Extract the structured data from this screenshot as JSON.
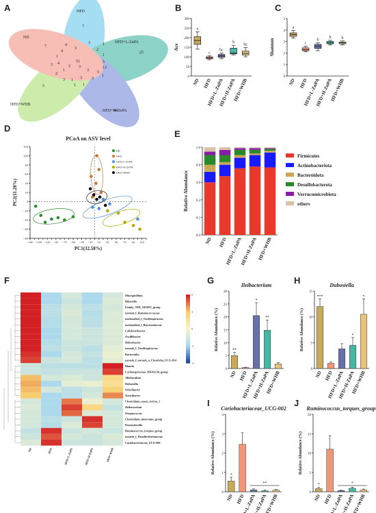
{
  "panels": {
    "A": "A",
    "B": "B",
    "C": "C",
    "D": "D",
    "E": "E",
    "F": "F",
    "G": "G",
    "H": "H",
    "I": "I",
    "J": "J"
  },
  "venn": {
    "sets": [
      {
        "name": "HFD",
        "color": "#5dc3e8"
      },
      {
        "name": "HFD+L-ZnPA",
        "color": "#2fae9a"
      },
      {
        "name": "HFD+H-ZnPA",
        "color": "#6b7fd6"
      },
      {
        "name": "HFD+WHB",
        "color": "#a6dc66"
      },
      {
        "name": "ND",
        "color": "#f28a7a"
      }
    ],
    "numbers": [
      "7",
      "25",
      "44",
      "3",
      "7",
      "51",
      "4",
      "3",
      "1",
      "1",
      "3",
      "4",
      "3",
      "2",
      "1",
      "5",
      "3",
      "1",
      "2",
      "1",
      "3",
      "12",
      "5",
      "1",
      "3",
      "1",
      "1",
      "3",
      "2",
      "4",
      "3"
    ]
  },
  "group_labels": [
    "ND",
    "HFD",
    "HFD+L-ZnPA",
    "HFD+H-ZnPA",
    "HFD+WHB"
  ],
  "box_colors": [
    "#c9a95c",
    "#f0977a",
    "#6872a8",
    "#46b6a5",
    "#e8c37e"
  ],
  "chart_data": [
    {
      "panel": "B",
      "type": "box",
      "ylabel": "Ace",
      "ylim": [
        0,
        300
      ],
      "yticks": [
        0,
        50,
        100,
        150,
        200,
        250,
        300
      ],
      "categories": [
        "ND",
        "HFD",
        "HFD+L-ZnPA",
        "HFD+H-ZnPA",
        "HFD+WHB"
      ],
      "boxes": [
        {
          "min": 140,
          "q1": 165,
          "median": 185,
          "q3": 205,
          "max": 230
        },
        {
          "min": 85,
          "q1": 90,
          "median": 95,
          "q3": 100,
          "max": 105
        },
        {
          "min": 90,
          "q1": 98,
          "median": 105,
          "q3": 112,
          "max": 120
        },
        {
          "min": 110,
          "q1": 115,
          "median": 120,
          "q3": 145,
          "max": 160
        },
        {
          "min": 100,
          "q1": 110,
          "median": 118,
          "q3": 130,
          "max": 148
        }
      ],
      "letters": [
        "a",
        "c",
        "bc",
        "b",
        "bc"
      ]
    },
    {
      "panel": "C",
      "type": "box",
      "ylabel": "Shannon",
      "ylim": [
        0,
        5
      ],
      "yticks": [
        0,
        1,
        2,
        3,
        4,
        5
      ],
      "categories": [
        "ND",
        "HFD",
        "HFD+L-ZnPA",
        "HFD+H-ZnPA",
        "HFD+WHB"
      ],
      "boxes": [
        {
          "min": 3.3,
          "q1": 3.45,
          "median": 3.6,
          "q3": 3.75,
          "max": 3.95
        },
        {
          "min": 2.1,
          "q1": 2.2,
          "median": 2.3,
          "q3": 2.45,
          "max": 2.6
        },
        {
          "min": 2.2,
          "q1": 2.4,
          "median": 2.6,
          "q3": 2.75,
          "max": 2.9
        },
        {
          "min": 2.7,
          "q1": 2.8,
          "median": 2.9,
          "q3": 3.0,
          "max": 3.1
        },
        {
          "min": 2.7,
          "q1": 2.8,
          "median": 2.9,
          "q3": 2.95,
          "max": 3.05
        }
      ],
      "letters": [
        "a",
        "c",
        "b",
        "b",
        "b"
      ]
    },
    {
      "panel": "D",
      "type": "scatter",
      "title": "PCoA on ASV level",
      "xlabel": "PC1(32.58%)",
      "ylabel": "PC2(11.28%)",
      "xlim": [
        -150,
        120
      ],
      "ylim": [
        -80,
        120
      ],
      "xticks": [
        -150,
        -140,
        -130,
        -120,
        -110,
        -100,
        -90,
        -80,
        -70,
        -60,
        -50,
        -40,
        -30,
        -20,
        -10,
        0,
        10,
        20,
        30,
        40,
        50,
        60,
        70,
        80,
        90,
        100,
        110,
        120
      ],
      "xtick_labels": [
        "−150",
        "−140",
        "−130",
        "−120",
        "−110",
        "−100",
        "−90",
        "−80",
        "−70",
        "−60",
        "−50",
        "−40",
        "−30",
        "−20",
        "−10",
        "0",
        "10",
        "20",
        "30",
        "40",
        "50",
        "60",
        "70",
        "80",
        "90",
        "100",
        "110",
        "120"
      ],
      "yticks": [
        -80,
        -60,
        -40,
        -20,
        0,
        20,
        40,
        60,
        80,
        100,
        120
      ],
      "yticks_labels": [
        "−80",
        "−60",
        "−40",
        "−20",
        "0",
        "20",
        "40",
        "60",
        "80",
        "100",
        "120"
      ],
      "series": [
        {
          "name": "ND",
          "color": "#2e8b2e",
          "points": [
            [
              -137,
              -10
            ],
            [
              -125,
              -30
            ],
            [
              -115,
              -45
            ],
            [
              -100,
              -38
            ],
            [
              -85,
              -35
            ],
            [
              -70,
              -40
            ],
            [
              -50,
              -33
            ]
          ]
        },
        {
          "name": "HFD",
          "color": "#c57a3a",
          "points": [
            [
              5,
              100
            ],
            [
              10,
              70
            ],
            [
              -8,
              55
            ],
            [
              3,
              40
            ],
            [
              15,
              20
            ],
            [
              -5,
              10
            ]
          ]
        },
        {
          "name": "HFD+L-ZnPA",
          "color": "#4a90e2",
          "points": [
            [
              20,
              5
            ],
            [
              35,
              -5
            ],
            [
              -5,
              -12
            ],
            [
              10,
              -15
            ],
            [
              100,
              -38
            ]
          ]
        },
        {
          "name": "HFD+H-ZnPA",
          "color": "#b5a800",
          "points": [
            [
              30,
              -20
            ],
            [
              55,
              -25
            ],
            [
              70,
              -45
            ],
            [
              90,
              -52
            ],
            [
              105,
              -60
            ]
          ]
        },
        {
          "name": "HFD+WHB",
          "color": "#111111",
          "points": [
            [
              -10,
              28
            ],
            [
              -2,
              15
            ],
            [
              5,
              5
            ],
            [
              12,
              10
            ],
            [
              25,
              -8
            ]
          ]
        }
      ]
    },
    {
      "panel": "E",
      "type": "stacked-bar",
      "ylabel": "Relative Abundance",
      "ylim": [
        0,
        1.0
      ],
      "yticks": [
        0,
        0.2,
        0.4,
        0.6,
        0.8,
        1.0
      ],
      "yticks_labels": [
        "0.0",
        "0.2",
        "0.4",
        "0.6",
        "0.8",
        "1.0"
      ],
      "categories": [
        "ND",
        "HFD",
        "HFD+L-ZnPA",
        "HFD+H-ZnPA",
        "HFD+WHB"
      ],
      "series": [
        {
          "name": "Firmicutes",
          "color": "#e8392b",
          "values": [
            0.6,
            0.67,
            0.76,
            0.78,
            0.77
          ]
        },
        {
          "name": "Actinobacteriota",
          "color": "#1a1aff",
          "values": [
            0.12,
            0.13,
            0.12,
            0.13,
            0.17
          ]
        },
        {
          "name": "Bacteroidota",
          "color": "#c9a857",
          "values": [
            0.08,
            0.03,
            0.03,
            0.02,
            0.02
          ]
        },
        {
          "name": "Desulfobacterota",
          "color": "#2a8a2a",
          "values": [
            0.11,
            0.08,
            0.06,
            0.04,
            0.02
          ]
        },
        {
          "name": "Verrucomicrobiota",
          "color": "#8a1aa8",
          "values": [
            0.04,
            0.06,
            0.02,
            0.02,
            0.01
          ]
        },
        {
          "name": "others",
          "color": "#d9c2a8",
          "values": [
            0.05,
            0.03,
            0.01,
            0.01,
            0.01
          ]
        }
      ]
    },
    {
      "panel": "F",
      "type": "heatmap",
      "scale": [
        -2,
        -1,
        0,
        1,
        2
      ],
      "scale_labels": [
        "-2",
        "-1",
        "0",
        "1",
        "2"
      ],
      "columns": [
        "ND",
        "HFD",
        "HFD+L-ZnPA",
        "HFD+H-ZnPA",
        "HFD+WHB"
      ],
      "rows": [
        "Mucispirillum",
        "Rikenella",
        "Family_XIII_AD3011_group",
        "norank_f_Ruminococcaceae",
        "unclassified_f_Oscillospiraceae",
        "unclassified_f_Bacteroidaceae",
        "Colidextribacter",
        "Oscillibacter",
        "Helicobacter",
        "norank_f_Oscillospiraceae",
        "Bacteroides",
        "norank_f_norank_o_Clostridia_UCG-014",
        "Blautia",
        "Lachnospiraceae_NK4A136_group",
        "Allobaculum",
        "Dubosiella",
        "Odoribacter",
        "Turicibacter",
        "Clostridium_sensu_stricto_1",
        "Ileibacterium",
        "Streptococcus",
        "Clostridium_innocuum_group",
        "Parasutterella",
        "Ruminococcus_torques_group",
        "norank_f_Desulfovibrionaceae",
        "Coriobacteriaceae_UCG-002"
      ],
      "values": [
        [
          2,
          -1,
          -0.5,
          -1,
          -0.5
        ],
        [
          2,
          -1,
          -0.6,
          -1,
          -0.4
        ],
        [
          2,
          -0.8,
          -0.5,
          -0.8,
          -0.5
        ],
        [
          2,
          -0.8,
          -0.4,
          -0.9,
          -0.4
        ],
        [
          2,
          -0.9,
          -0.5,
          -0.8,
          -0.4
        ],
        [
          2,
          -0.9,
          -0.5,
          -0.8,
          -0.4
        ],
        [
          2,
          -1,
          -0.5,
          -0.6,
          -0.4
        ],
        [
          2,
          -1,
          -0.5,
          -0.6,
          -0.4
        ],
        [
          2,
          -0.9,
          -0.6,
          -0.6,
          -0.4
        ],
        [
          2,
          -0.8,
          -0.6,
          -0.8,
          -0.3
        ],
        [
          1.9,
          -1,
          -0.5,
          -0.7,
          -0.2
        ],
        [
          1.8,
          -0.6,
          -0.5,
          -0.8,
          -0.3
        ],
        [
          -0.6,
          -0.8,
          -0.8,
          -0.8,
          2
        ],
        [
          -0.6,
          -0.7,
          -0.6,
          -0.6,
          1.8
        ],
        [
          1.1,
          -0.5,
          -0.4,
          -0.6,
          0.7
        ],
        [
          1.2,
          -1,
          -0.3,
          -0.2,
          0.6
        ],
        [
          1.1,
          -0.5,
          -0.8,
          -0.6,
          0.9
        ],
        [
          1.0,
          -1,
          -0.8,
          -0.5,
          1.4
        ],
        [
          -0.5,
          -1,
          1.5,
          -0.2,
          -0.5
        ],
        [
          -0.4,
          -1,
          1.8,
          0.8,
          -0.7
        ],
        [
          -0.5,
          -1,
          1.6,
          -0.4,
          -0.5
        ],
        [
          -0.5,
          -0.8,
          -0.6,
          1.9,
          -0.5
        ],
        [
          -0.5,
          -0.9,
          -0.4,
          1.8,
          -0.5
        ],
        [
          -0.7,
          1.9,
          -0.6,
          -0.5,
          -0.6
        ],
        [
          -0.6,
          1.7,
          -0.5,
          -0.6,
          -0.4
        ],
        [
          -0.4,
          1.9,
          -0.6,
          -0.6,
          -0.5
        ]
      ]
    },
    {
      "panel": "G",
      "type": "bar",
      "title": "Ileibacterium",
      "ylabel": "Relative Abundance (%)",
      "ylim": [
        0,
        30
      ],
      "yticks": [
        0,
        5,
        10,
        15,
        20,
        25,
        30
      ],
      "categories": [
        "ND",
        "HFD",
        "HFD+L-ZnPA",
        "HFD+H-ZnPA",
        "HFD+WHB"
      ],
      "values": [
        5.0,
        0.4,
        20.5,
        14.8,
        1.8
      ],
      "errors": [
        1.2,
        0.1,
        5.0,
        4.0,
        0.5
      ],
      "sig": [
        "**",
        "",
        "*",
        "**",
        ""
      ]
    },
    {
      "panel": "H",
      "type": "bar",
      "title": "Dubosiella",
      "ylabel": "Relative Abundance (%)",
      "ylim": [
        0,
        15
      ],
      "yticks": [
        0,
        5,
        10,
        15
      ],
      "categories": [
        "ND",
        "HFD",
        "HFD+L-ZnPA",
        "HFD+H-ZnPA",
        "HFD+WHB"
      ],
      "values": [
        12.0,
        1.0,
        3.8,
        4.5,
        10.5
      ],
      "errors": [
        1.5,
        0.3,
        1.0,
        1.5,
        3.0
      ],
      "sig": [
        "***",
        "",
        "",
        "*",
        "*"
      ]
    },
    {
      "panel": "I",
      "type": "bar",
      "title": "Coriobacteriaceae_UCG-002",
      "ylabel": "Relative Abundance (%)",
      "ylim": [
        0,
        4
      ],
      "yticks": [
        0,
        1,
        2,
        3,
        4
      ],
      "categories": [
        "ND",
        "HFD",
        "HFD+L-ZnPA",
        "HFD+H-ZnPA",
        "HFD+WHB"
      ],
      "values": [
        0.55,
        2.45,
        0.1,
        0.05,
        0.08
      ],
      "errors": [
        0.2,
        0.6,
        0.05,
        0.03,
        0.04
      ],
      "sig": [
        "*",
        "",
        "**",
        "",
        ""
      ]
    },
    {
      "panel": "J",
      "type": "bar",
      "title": "Ruminococcus_torques_group",
      "ylabel": "Relative Abundance (%)",
      "ylim": [
        0,
        20
      ],
      "yticks": [
        0,
        5,
        10,
        15,
        20
      ],
      "categories": [
        "ND",
        "HFD",
        "HFD+L-ZnPA",
        "HFD+H-ZnPA",
        "HFD+WHB"
      ],
      "values": [
        0.8,
        11.0,
        0.3,
        0.9,
        0.5
      ],
      "errors": [
        0.4,
        3.5,
        0.1,
        0.3,
        0.2
      ],
      "sig": [
        "*",
        "",
        "*",
        "",
        ""
      ]
    }
  ]
}
